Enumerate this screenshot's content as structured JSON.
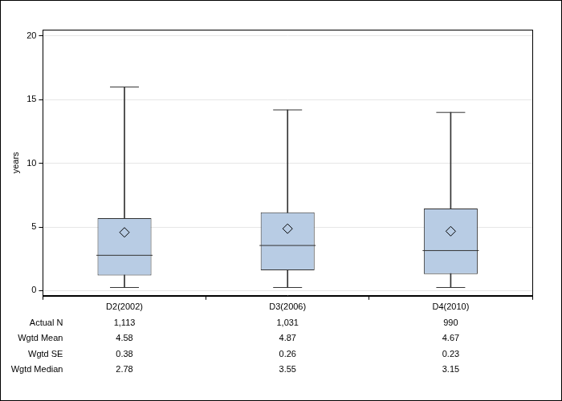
{
  "chart_data": {
    "type": "boxplot",
    "y_label": "years",
    "categories": [
      "D2(2002)",
      "D3(2006)",
      "D4(2010)"
    ],
    "min": [
      0.25,
      0.25,
      0.25
    ],
    "q1": [
      1.2,
      1.6,
      1.3
    ],
    "median": [
      2.78,
      3.55,
      3.15
    ],
    "q3": [
      5.7,
      6.15,
      6.45
    ],
    "max": [
      16.0,
      14.2,
      14.0
    ],
    "mean": [
      4.58,
      4.87,
      4.67
    ],
    "color": "#b8cce4",
    "ylim": [
      -0.4,
      20.5
    ],
    "yticks": [
      0,
      5,
      10,
      15,
      20
    ],
    "grid": true,
    "table": {
      "rows": [
        {
          "label": "Actual N",
          "values": [
            "1,113",
            "1,031",
            "990"
          ]
        },
        {
          "label": "Wgtd Mean",
          "values": [
            "4.58",
            "4.87",
            "4.67"
          ]
        },
        {
          "label": "Wgtd SE",
          "values": [
            "0.38",
            "0.26",
            "0.23"
          ]
        },
        {
          "label": "Wgtd Median",
          "values": [
            "2.78",
            "3.55",
            "3.15"
          ]
        }
      ]
    }
  }
}
